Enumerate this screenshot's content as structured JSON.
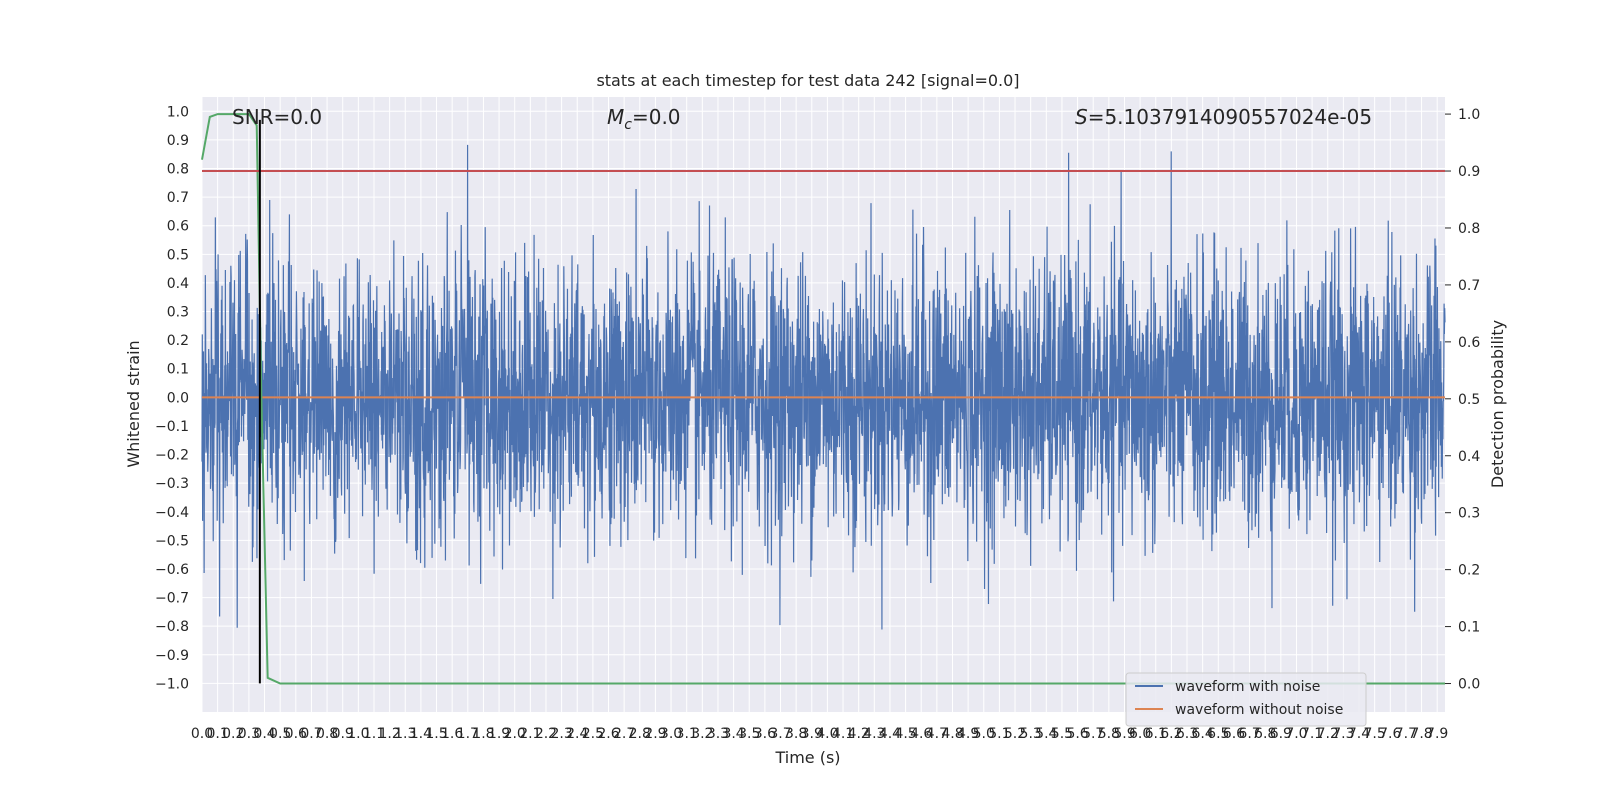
{
  "chart_data": {
    "type": "line",
    "title": "stats at each timestep for test data 242 [signal=0.0]",
    "xlabel": "Time (s)",
    "ylabel_left": "Whitened strain",
    "ylabel_right": "Detection probability",
    "xlim": [
      0.0,
      7.95
    ],
    "ylim_left": [
      -1.1,
      1.05
    ],
    "ylim_right": [
      -0.05,
      1.03
    ],
    "x_ticks": [
      0.0,
      0.1,
      0.2,
      0.3,
      0.4,
      0.5,
      0.6,
      0.7,
      0.8,
      0.9,
      1.0,
      1.1,
      1.2,
      1.3,
      1.4,
      1.5,
      1.6,
      1.7,
      1.8,
      1.9,
      2.0,
      2.1,
      2.2,
      2.3,
      2.4,
      2.5,
      2.6,
      2.7,
      2.8,
      2.9,
      3.0,
      3.1,
      3.2,
      3.3,
      3.4,
      3.5,
      3.6,
      3.7,
      3.8,
      3.9,
      4.0,
      4.1,
      4.2,
      4.3,
      4.4,
      4.5,
      4.6,
      4.7,
      4.8,
      4.9,
      5.0,
      5.1,
      5.2,
      5.3,
      5.4,
      5.5,
      5.6,
      5.7,
      5.8,
      5.9,
      6.0,
      6.1,
      6.2,
      6.3,
      6.4,
      6.5,
      6.6,
      6.7,
      6.8,
      6.9,
      7.0,
      7.1,
      7.2,
      7.3,
      7.4,
      7.5,
      7.6,
      7.7,
      7.8,
      7.9
    ],
    "x_tick_labels": [
      "0.0",
      "0.1",
      "0.2",
      "0.3",
      "0.4",
      "0.5",
      "0.6",
      "0.7",
      "0.8",
      "0.9",
      "1.0",
      "1.1",
      "1.2",
      "1.3",
      "1.4",
      "1.5",
      "1.6",
      "1.7",
      "1.8",
      "1.9",
      "2.0",
      "2.1",
      "2.2",
      "2.3",
      "2.4",
      "2.5",
      "2.6",
      "2.7",
      "2.8",
      "2.9",
      "3.0",
      "3.1",
      "3.2",
      "3.3",
      "3.4",
      "3.5",
      "3.6",
      "3.7",
      "3.8",
      "3.9",
      "4.0",
      "4.1",
      "4.2",
      "4.3",
      "4.4",
      "4.5",
      "4.6",
      "4.7",
      "4.8",
      "4.9",
      "5.0",
      "5.1",
      "5.2",
      "5.3",
      "5.4",
      "5.5",
      "5.6",
      "5.7",
      "5.8",
      "5.9",
      "6.0",
      "6.1",
      "6.2",
      "6.3",
      "6.4",
      "6.5",
      "6.6",
      "6.7",
      "6.8",
      "6.9",
      "7.0",
      "7.1",
      "7.2",
      "7.3",
      "7.4",
      "7.5",
      "7.6",
      "7.7",
      "7.8",
      "7.9"
    ],
    "y_left_ticks": [
      -1.0,
      -0.9,
      -0.8,
      -0.7,
      -0.6,
      -0.5,
      -0.4,
      -0.3,
      -0.2,
      -0.1,
      0.0,
      0.1,
      0.2,
      0.3,
      0.4,
      0.5,
      0.6,
      0.7,
      0.8,
      0.9,
      1.0
    ],
    "y_left_tick_labels": [
      "−1.0",
      "−0.9",
      "−0.8",
      "−0.7",
      "−0.6",
      "−0.5",
      "−0.4",
      "−0.3",
      "−0.2",
      "−0.1",
      "0.0",
      "0.1",
      "0.2",
      "0.3",
      "0.4",
      "0.5",
      "0.6",
      "0.7",
      "0.8",
      "0.9",
      "1.0"
    ],
    "y_right_ticks": [
      0.0,
      0.1,
      0.2,
      0.3,
      0.4,
      0.5,
      0.6,
      0.7,
      0.8,
      0.9,
      1.0
    ],
    "y_right_tick_labels": [
      "0.0",
      "0.1",
      "0.2",
      "0.3",
      "0.4",
      "0.5",
      "0.6",
      "0.7",
      "0.8",
      "0.9",
      "1.0"
    ],
    "annotations": {
      "snr": "SNR=0.0",
      "mc_sym": "M",
      "mc_sub": "c",
      "mc_val": "=0.0",
      "s_sym": "S",
      "s_val": "=5.1037914090557024e-05"
    },
    "grid": true,
    "legend": {
      "position": "bottom-right"
    },
    "colors": {
      "noise": "#4c72b0",
      "clean": "#dd8452",
      "prob": "#55a868",
      "threshold": "#c44e52",
      "marker": "#000000",
      "bg": "#eaeaf2",
      "grid": "#ffffff"
    },
    "series": [
      {
        "name": "waveform with noise",
        "axis": "left",
        "kind": "noise",
        "amplitude_std": 0.24,
        "peak_max": 0.94,
        "peak_min": -1.0,
        "n_samples": 4096,
        "x_range": [
          0.0,
          7.95
        ]
      },
      {
        "name": "waveform without noise",
        "axis": "left",
        "kind": "constant",
        "value": 0.0
      },
      {
        "axis": "right",
        "kind": "line",
        "x": [
          0.0,
          0.05,
          0.1,
          0.2,
          0.3,
          0.35,
          0.38,
          0.42,
          0.5,
          7.95
        ],
        "y": [
          0.92,
          0.995,
          1.0,
          1.0,
          1.0,
          0.98,
          0.5,
          0.01,
          0.0,
          0.0
        ]
      },
      {
        "axis": "right",
        "kind": "hline",
        "value": 0.9
      },
      {
        "axis": "left",
        "kind": "vline",
        "x": 0.37,
        "y_from": -1.0,
        "y_to": 0.97
      }
    ]
  }
}
